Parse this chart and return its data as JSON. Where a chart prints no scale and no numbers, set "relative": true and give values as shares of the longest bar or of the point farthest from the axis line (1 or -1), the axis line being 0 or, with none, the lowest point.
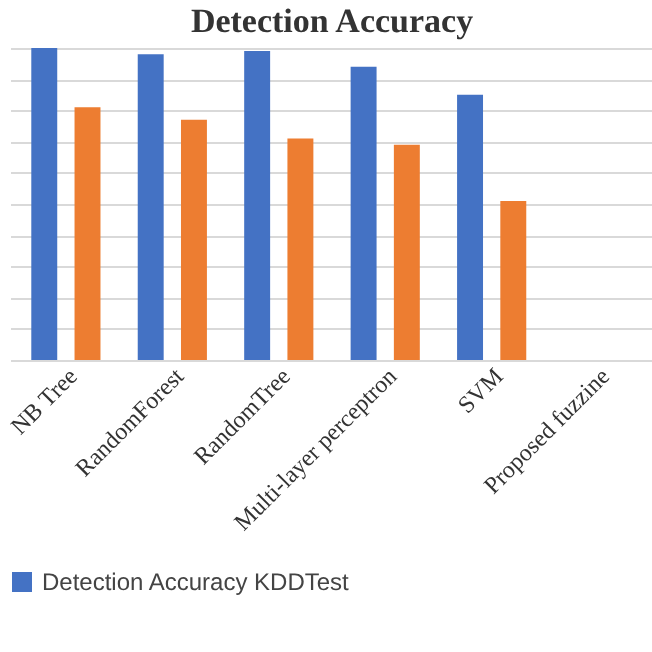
{
  "chart_data": {
    "type": "bar",
    "title": "Detection Accuracy",
    "relative": true,
    "grid": "y",
    "legend": "bottom",
    "categories": [
      "NB Tree",
      "RandomForest",
      "RandomTree",
      "Multi-layer perceptron",
      "SVM",
      "Proposed fuzzine"
    ],
    "series": [
      {
        "name": "Detection Accuracy KDDTest",
        "color": "#4472c4",
        "values": [
          1,
          0.98,
          0.99,
          0.94,
          0.85,
          null
        ]
      },
      {
        "color": "#ed7d31",
        "values": [
          0.81,
          0.77,
          0.71,
          0.69,
          0.51,
          null
        ]
      }
    ]
  }
}
